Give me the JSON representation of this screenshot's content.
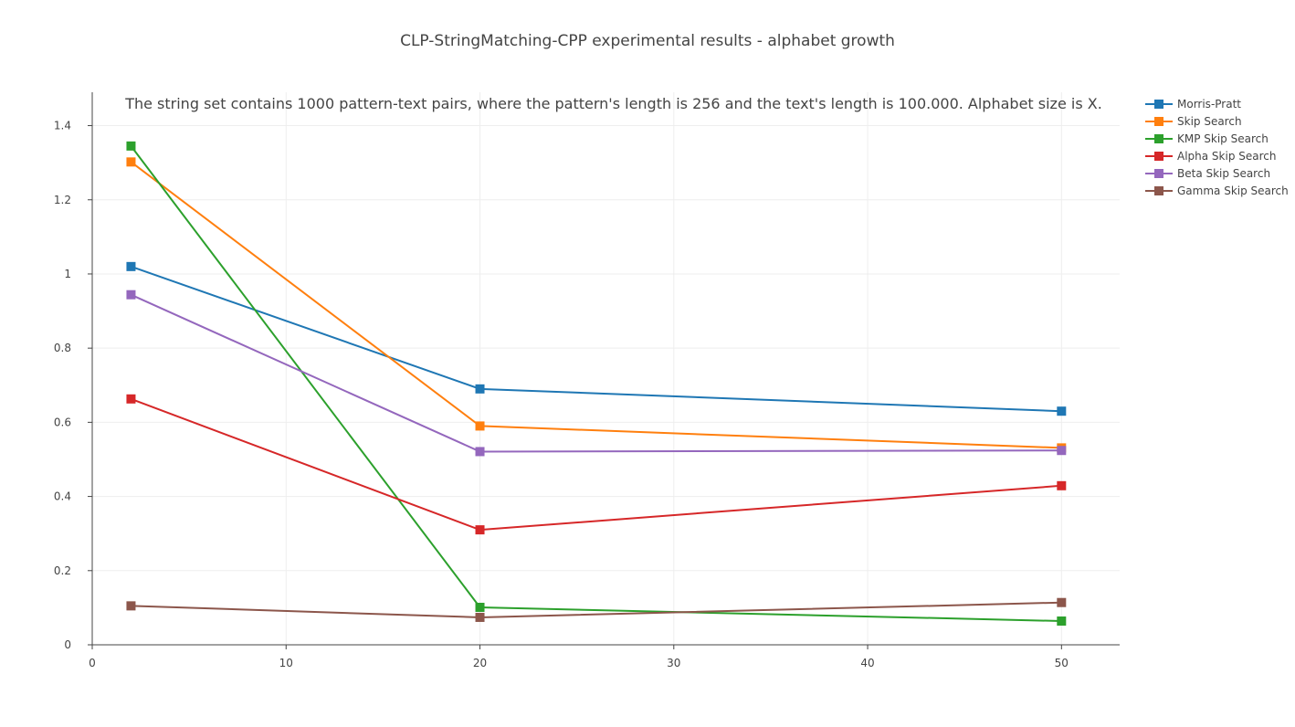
{
  "chart_data": {
    "type": "line",
    "title": "CLP-StringMatching-CPP experimental results - alphabet growth",
    "annotation": "The string set contains 1000 pattern-text pairs, where the pattern's length is 256 and the text's length is 100.000. Alphabet size is X.",
    "xlabel": "",
    "ylabel": "",
    "x": [
      2,
      20,
      50
    ],
    "xlim": [
      0,
      53
    ],
    "ylim": [
      0,
      1.49
    ],
    "xticks": [
      0,
      10,
      20,
      30,
      40,
      50
    ],
    "yticks": [
      0,
      0.2,
      0.4,
      0.6,
      0.8,
      1,
      1.2,
      1.4
    ],
    "xtick_labels": [
      "0",
      "10",
      "20",
      "30",
      "40",
      "50"
    ],
    "ytick_labels": [
      "0",
      "0.2",
      "0.4",
      "0.6",
      "0.8",
      "1",
      "1.2",
      "1.4"
    ],
    "grid": true,
    "legend_position": "top-right",
    "series": [
      {
        "name": "Morris-Pratt",
        "color": "#1f77b4",
        "values": [
          1.02,
          0.69,
          0.63
        ]
      },
      {
        "name": "Skip Search",
        "color": "#ff7f0e",
        "values": [
          1.302,
          0.59,
          0.531
        ]
      },
      {
        "name": "KMP Skip Search",
        "color": "#2ca02c",
        "values": [
          1.345,
          0.101,
          0.064
        ]
      },
      {
        "name": "Alpha Skip Search",
        "color": "#d62728",
        "values": [
          0.663,
          0.31,
          0.429
        ]
      },
      {
        "name": "Beta Skip Search",
        "color": "#9467bd",
        "values": [
          0.944,
          0.521,
          0.524
        ]
      },
      {
        "name": "Gamma Skip Search",
        "color": "#8c564b",
        "values": [
          0.105,
          0.074,
          0.114
        ]
      }
    ]
  }
}
